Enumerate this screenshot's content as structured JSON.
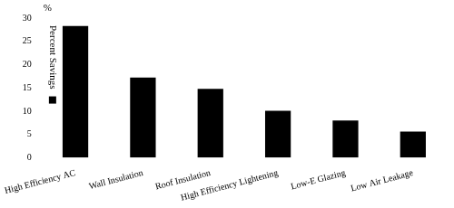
{
  "chart_data": {
    "type": "bar",
    "y_label": "%",
    "categories": [
      "High Efficiency AC",
      "Wall Insulation",
      "Roof Insulation",
      "High Efficiency Lightening",
      "Low-E Glazing",
      "Low Air Leakage"
    ],
    "series": [
      {
        "name": "Percent Savings",
        "color": "#000000",
        "values": [
          28.3,
          17.2,
          14.8,
          10.1,
          8.0,
          5.6
        ]
      }
    ],
    "ylim": [
      0,
      30
    ],
    "yticks": [
      0,
      5,
      10,
      15,
      20,
      25,
      30
    ],
    "grid": false,
    "legend": "top-left"
  }
}
